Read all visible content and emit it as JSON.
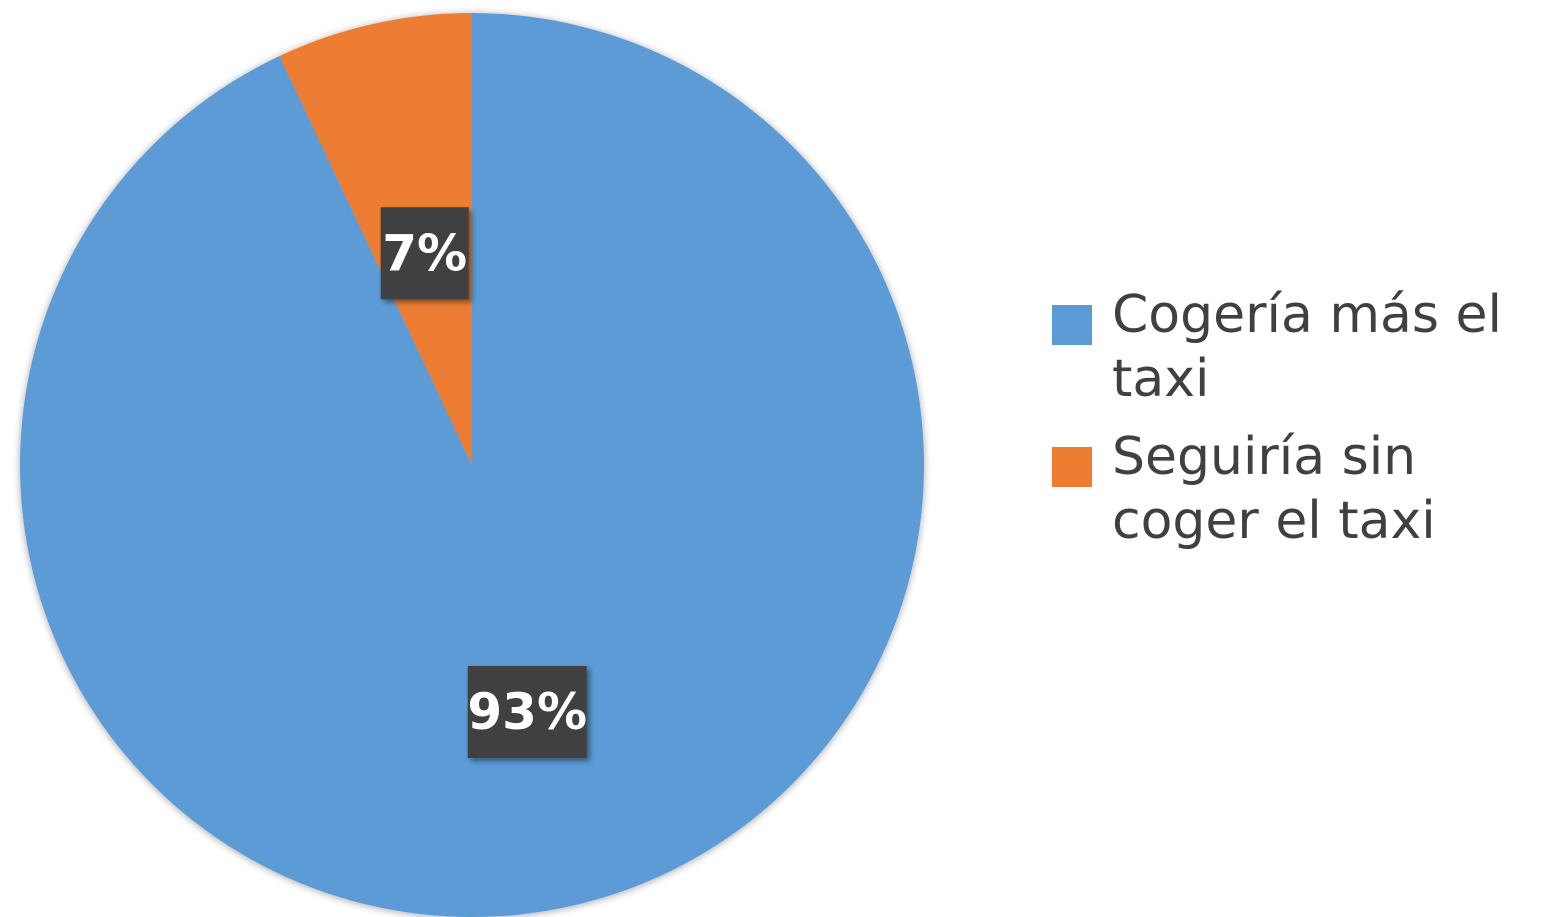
{
  "chart_data": {
    "type": "pie",
    "title": "",
    "categories": [
      "Cogería más el taxi",
      "Seguiría sin coger el taxi"
    ],
    "values": [
      93,
      7
    ],
    "data_labels": [
      "93%",
      "7%"
    ],
    "colors": [
      "#5b9bd5",
      "#ed7d31"
    ],
    "start_angle_deg": 0,
    "direction": "clockwise",
    "legend_position": "right"
  },
  "legend": {
    "items": [
      {
        "label": "Cogería más el taxi",
        "color": "#5b9bd5"
      },
      {
        "label": "Seguiría sin coger el taxi",
        "color": "#ed7d31"
      }
    ]
  },
  "colors": {
    "label_box": "#404040",
    "label_text": "#ffffff",
    "legend_text": "#404040"
  }
}
